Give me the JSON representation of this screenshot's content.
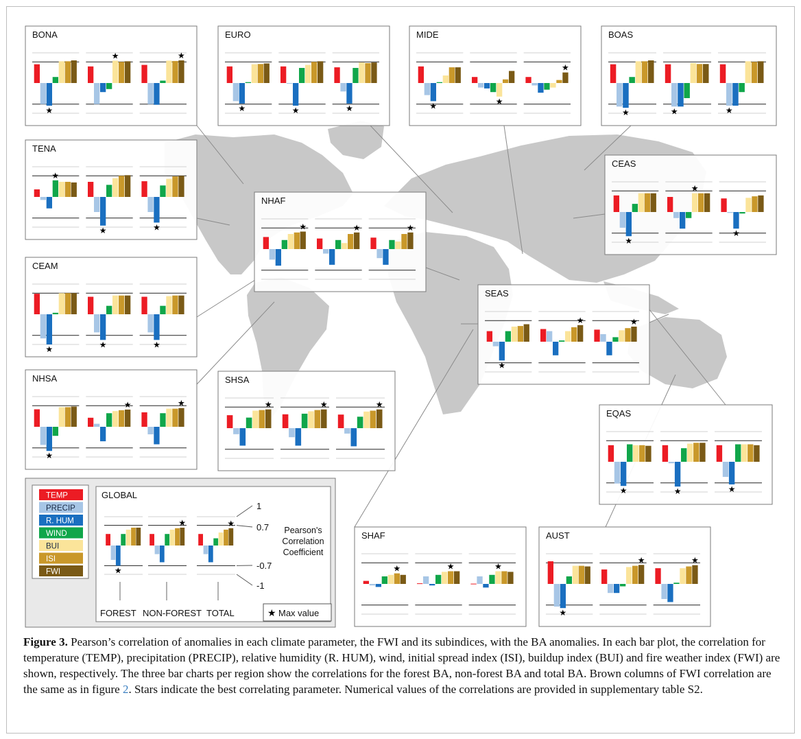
{
  "colors": {
    "TEMP": "#ec1c24",
    "PRECIP": "#a7c6e6",
    "R. HUM": "#1a6fc0",
    "WIND": "#10a64a",
    "BUI": "#fbe49a",
    "ISI": "#c9982a",
    "FWI": "#7a5a16",
    "map": "#c8c8c8",
    "panel_bg": "rgba(255,255,255,0.93)"
  },
  "legend": {
    "params": [
      "TEMP",
      "PRECIP",
      "R. HUM",
      "WIND",
      "BUI",
      "ISI",
      "FWI"
    ],
    "scale_labels": [
      "1",
      "0.7",
      "-0.7",
      "-1"
    ],
    "scale_title": [
      "Pearson's",
      "Correlation",
      "Coefficient"
    ],
    "group_labels": [
      "FOREST",
      "NON-FOREST",
      "TOTAL"
    ],
    "max_marker": "★",
    "max_label": "Max value"
  },
  "chart_data": [
    {
      "type": "bar",
      "region": "BONA",
      "title": "BONA",
      "categories": [
        "TEMP",
        "PRECIP",
        "R. HUM",
        "WIND",
        "BUI",
        "ISI",
        "FWI"
      ],
      "series": [
        {
          "values": [
            0.62,
            -0.7,
            -0.75,
            0.2,
            0.72,
            0.72,
            0.75
          ]
        },
        {
          "values": [
            0.55,
            -0.7,
            -0.3,
            -0.2,
            0.74,
            0.7,
            0.72
          ]
        },
        {
          "values": [
            0.6,
            -0.7,
            -0.72,
            0.08,
            0.74,
            0.73,
            0.75
          ]
        }
      ]
    },
    {
      "type": "bar",
      "region": "EURO",
      "title": "EURO",
      "categories": [
        "TEMP",
        "PRECIP",
        "R. HUM",
        "WIND",
        "BUI",
        "ISI",
        "FWI"
      ],
      "series": [
        {
          "values": [
            0.55,
            -0.6,
            -0.68,
            0.03,
            0.62,
            0.63,
            0.65
          ]
        },
        {
          "values": [
            0.55,
            -0.02,
            -0.75,
            0.5,
            0.6,
            0.7,
            0.72
          ]
        },
        {
          "values": [
            0.52,
            -0.28,
            -0.68,
            0.5,
            0.68,
            0.66,
            0.68
          ]
        }
      ]
    },
    {
      "type": "bar",
      "region": "MIDE",
      "title": "MIDE",
      "categories": [
        "TEMP",
        "PRECIP",
        "R. HUM",
        "WIND",
        "BUI",
        "ISI",
        "FWI"
      ],
      "series": [
        {
          "values": [
            0.55,
            -0.4,
            -0.6,
            0.03,
            0.25,
            0.52,
            0.52
          ]
        },
        {
          "values": [
            0.2,
            -0.15,
            -0.18,
            -0.3,
            -0.45,
            0.12,
            0.4
          ]
        },
        {
          "values": [
            0.2,
            -0.08,
            -0.32,
            -0.22,
            -0.15,
            0.1,
            0.35
          ]
        }
      ]
    },
    {
      "type": "bar",
      "region": "BOAS",
      "title": "BOAS",
      "categories": [
        "TEMP",
        "PRECIP",
        "R. HUM",
        "WIND",
        "BUI",
        "ISI",
        "FWI"
      ],
      "series": [
        {
          "values": [
            0.62,
            -0.78,
            -0.82,
            0.2,
            0.72,
            0.72,
            0.75
          ]
        },
        {
          "values": [
            0.62,
            -0.78,
            -0.78,
            -0.5,
            0.66,
            0.63,
            0.63
          ]
        },
        {
          "values": [
            0.62,
            -0.75,
            -0.75,
            -0.3,
            0.72,
            0.7,
            0.72
          ]
        }
      ]
    },
    {
      "type": "bar",
      "region": "TENA",
      "title": "TENA",
      "categories": [
        "TEMP",
        "PRECIP",
        "R. HUM",
        "WIND",
        "BUI",
        "ISI",
        "FWI"
      ],
      "series": [
        {
          "values": [
            0.25,
            -0.1,
            -0.38,
            0.55,
            0.5,
            0.5,
            0.48
          ]
        },
        {
          "values": [
            0.5,
            -0.5,
            -0.95,
            0.4,
            0.62,
            0.7,
            0.72
          ]
        },
        {
          "values": [
            0.52,
            -0.5,
            -0.85,
            0.38,
            0.6,
            0.68,
            0.7
          ]
        }
      ]
    },
    {
      "type": "bar",
      "region": "CEAS",
      "title": "CEAS",
      "categories": [
        "TEMP",
        "PRECIP",
        "R. HUM",
        "WIND",
        "BUI",
        "ISI",
        "FWI"
      ],
      "series": [
        {
          "values": [
            0.55,
            -0.52,
            -0.8,
            0.27,
            0.62,
            0.62,
            0.62
          ]
        },
        {
          "values": [
            0.5,
            -0.2,
            -0.55,
            -0.2,
            0.62,
            0.62,
            0.62
          ]
        },
        {
          "values": [
            0.45,
            -0.03,
            -0.55,
            -0.05,
            0.47,
            0.52,
            0.55
          ]
        }
      ]
    },
    {
      "type": "bar",
      "region": "NHAF",
      "title": "NHAF",
      "categories": [
        "TEMP",
        "PRECIP",
        "R. HUM",
        "WIND",
        "BUI",
        "ISI",
        "FWI"
      ],
      "series": [
        {
          "values": [
            0.4,
            -0.35,
            -0.55,
            0.3,
            0.5,
            0.55,
            0.58
          ]
        },
        {
          "values": [
            0.35,
            -0.15,
            -0.52,
            0.3,
            0.2,
            0.5,
            0.55
          ]
        },
        {
          "values": [
            0.38,
            -0.3,
            -0.52,
            0.3,
            0.25,
            0.5,
            0.55
          ]
        }
      ]
    },
    {
      "type": "bar",
      "region": "CEAM",
      "title": "CEAM",
      "categories": [
        "TEMP",
        "PRECIP",
        "R. HUM",
        "WIND",
        "BUI",
        "ISI",
        "FWI"
      ],
      "series": [
        {
          "values": [
            0.68,
            -0.8,
            -1.0,
            0.05,
            0.7,
            0.7,
            0.7
          ]
        },
        {
          "values": [
            0.58,
            -0.6,
            -0.85,
            0.28,
            0.62,
            0.62,
            0.62
          ]
        },
        {
          "values": [
            0.58,
            -0.6,
            -0.85,
            0.28,
            0.6,
            0.62,
            0.62
          ]
        }
      ]
    },
    {
      "type": "bar",
      "region": "SEAS",
      "title": "SEAS",
      "categories": [
        "TEMP",
        "PRECIP",
        "R. HUM",
        "WIND",
        "BUI",
        "ISI",
        "FWI"
      ],
      "series": [
        {
          "values": [
            0.35,
            -0.15,
            -0.62,
            0.35,
            0.5,
            0.52,
            0.58
          ]
        },
        {
          "values": [
            0.42,
            0.35,
            -0.45,
            0.04,
            0.35,
            0.48,
            0.55
          ]
        },
        {
          "values": [
            0.4,
            0.25,
            -0.45,
            0.15,
            0.38,
            0.45,
            0.5
          ]
        }
      ]
    },
    {
      "type": "bar",
      "region": "NHSA",
      "title": "NHSA",
      "categories": [
        "TEMP",
        "PRECIP",
        "R. HUM",
        "WIND",
        "BUI",
        "ISI",
        "FWI"
      ],
      "series": [
        {
          "values": [
            0.58,
            -0.6,
            -0.8,
            -0.3,
            0.65,
            0.65,
            0.67
          ]
        },
        {
          "values": [
            0.3,
            0.1,
            -0.48,
            0.45,
            0.52,
            0.55,
            0.57
          ]
        },
        {
          "values": [
            0.48,
            -0.25,
            -0.58,
            0.45,
            0.6,
            0.6,
            0.62
          ]
        }
      ]
    },
    {
      "type": "bar",
      "region": "SHSA",
      "title": "SHSA",
      "categories": [
        "TEMP",
        "PRECIP",
        "R. HUM",
        "WIND",
        "BUI",
        "ISI",
        "FWI"
      ],
      "series": [
        {
          "values": [
            0.43,
            -0.2,
            -0.58,
            0.35,
            0.58,
            0.6,
            0.62
          ]
        },
        {
          "values": [
            0.46,
            -0.3,
            -0.58,
            0.48,
            0.56,
            0.6,
            0.62
          ]
        },
        {
          "values": [
            0.45,
            -0.18,
            -0.6,
            0.38,
            0.55,
            0.58,
            0.62
          ]
        }
      ]
    },
    {
      "type": "bar",
      "region": "EQAS",
      "title": "EQAS",
      "categories": [
        "TEMP",
        "PRECIP",
        "R. HUM",
        "WIND",
        "BUI",
        "ISI",
        "FWI"
      ],
      "series": [
        {
          "values": [
            0.55,
            -0.72,
            -0.8,
            0.58,
            0.55,
            0.55,
            0.53
          ]
        },
        {
          "values": [
            0.55,
            -0.05,
            -0.82,
            0.45,
            0.6,
            0.63,
            0.63
          ]
        },
        {
          "values": [
            0.55,
            -0.5,
            -0.75,
            0.58,
            0.58,
            0.58,
            0.55
          ]
        }
      ]
    },
    {
      "type": "bar",
      "region": "GLOBAL",
      "title": "GLOBAL",
      "categories": [
        "TEMP",
        "PRECIP",
        "R. HUM",
        "WIND",
        "BUI",
        "ISI",
        "FWI"
      ],
      "series": [
        {
          "values": [
            0.4,
            -0.5,
            -0.7,
            0.4,
            0.55,
            0.62,
            0.62
          ]
        },
        {
          "values": [
            0.4,
            -0.3,
            -0.58,
            0.4,
            0.55,
            0.6,
            0.62
          ]
        },
        {
          "values": [
            0.4,
            -0.3,
            -0.58,
            0.25,
            0.45,
            0.55,
            0.6
          ]
        }
      ]
    },
    {
      "type": "bar",
      "region": "SHAF",
      "title": "SHAF",
      "categories": [
        "TEMP",
        "PRECIP",
        "R. HUM",
        "WIND",
        "BUI",
        "ISI",
        "FWI"
      ],
      "series": [
        {
          "values": [
            0.1,
            -0.05,
            -0.1,
            0.25,
            0.3,
            0.35,
            0.3
          ]
        },
        {
          "values": [
            0.02,
            0.25,
            -0.05,
            0.3,
            0.4,
            0.42,
            0.42
          ]
        },
        {
          "values": [
            0.01,
            0.25,
            -0.12,
            0.3,
            0.42,
            0.42,
            0.4
          ]
        }
      ]
    },
    {
      "type": "bar",
      "region": "AUST",
      "title": "AUST",
      "categories": [
        "TEMP",
        "PRECIP",
        "R. HUM",
        "WIND",
        "BUI",
        "ISI",
        "FWI"
      ],
      "series": [
        {
          "values": [
            0.75,
            -0.75,
            -0.8,
            0.25,
            0.6,
            0.6,
            0.58
          ]
        },
        {
          "values": [
            0.48,
            -0.3,
            -0.3,
            -0.08,
            0.56,
            0.6,
            0.63
          ]
        },
        {
          "values": [
            0.52,
            -0.5,
            -0.6,
            0.04,
            0.52,
            0.58,
            0.62
          ]
        }
      ]
    }
  ],
  "caption": {
    "label": "Figure 3.",
    "text1": " Pearson’s correlation of anomalies in each climate parameter, the FWI and its subindices, with the BA anomalies. In each bar plot, the correlation for temperature (TEMP), precipitation (PRECIP), relative humidity (R. HUM), wind, initial spread index (ISI), buildup index (BUI) and fire weather index (FWI) are shown, respectively. The three bar charts per region show the correlations for the forest BA, non-forest BA and total BA. Brown columns of FWI correlation are the same as in figure ",
    "ref": "2",
    "text2": ". Stars indicate the best correlating parameter. Numerical values of the correlations are provided in supplementary table S2."
  }
}
